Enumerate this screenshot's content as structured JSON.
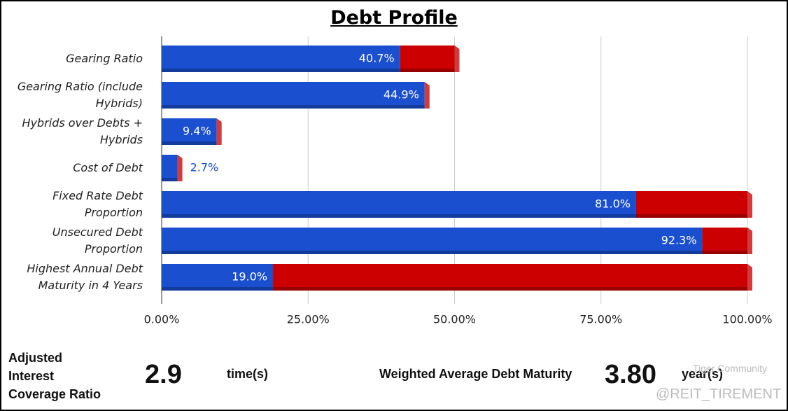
{
  "chart_data": {
    "type": "stacked-barh",
    "title": "Debt Profile",
    "categories": [
      "Gearing Ratio",
      "Gearing Ratio (include Hybrids)",
      "Hybrids over Debts + Hybrids",
      "Cost of Debt",
      "Fixed Rate Debt Proportion",
      "Unsecured Debt Proportion",
      "Highest Annual Debt Maturity in 4 Years"
    ],
    "series": [
      {
        "color": "#1a4fd0",
        "values": [
          40.7,
          44.9,
          9.4,
          2.7,
          81.0,
          92.3,
          19.0
        ],
        "value_labels": [
          "40.7%",
          "44.9%",
          "9.4%",
          "2.7%",
          "81.0%",
          "92.3%",
          "19.0%"
        ]
      },
      {
        "color": "#cc0000",
        "values": [
          9.3,
          0,
          0,
          0,
          19.0,
          7.7,
          81.0
        ]
      }
    ],
    "xlim": [
      0,
      100
    ],
    "xticks": [
      {
        "value": 0,
        "label": "0.00%"
      },
      {
        "value": 25,
        "label": "25.00%"
      },
      {
        "value": 50,
        "label": "50.00%"
      },
      {
        "value": 75,
        "label": "75.00%"
      },
      {
        "value": 100,
        "label": "100.00%"
      }
    ],
    "grid": true
  },
  "footer": {
    "coverage_label": "Adjusted Interest Coverage Ratio",
    "coverage_value": "2.9",
    "coverage_unit": "time(s)",
    "maturity_label": "Weighted Average Debt Maturity",
    "maturity_value": "3.80",
    "maturity_unit": "year(s)"
  },
  "watermark": {
    "brand": "Tiger Community",
    "handle": "@REIT_TIREMENT"
  }
}
